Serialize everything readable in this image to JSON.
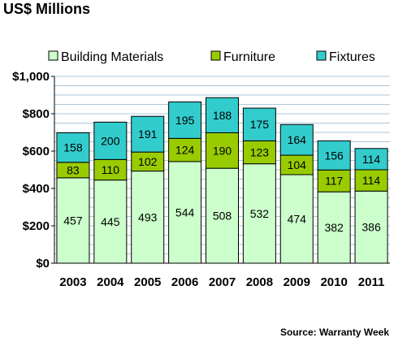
{
  "chart_data": {
    "type": "bar",
    "stacked": true,
    "title": "US$ Millions",
    "source": "Source: Warranty Week",
    "categories": [
      "2003",
      "2004",
      "2005",
      "2006",
      "2007",
      "2008",
      "2009",
      "2010",
      "2011"
    ],
    "series": [
      {
        "name": "Building Materials",
        "color": "#ccffcc",
        "values": [
          457,
          445,
          493,
          544,
          508,
          532,
          474,
          382,
          386
        ]
      },
      {
        "name": "Furniture",
        "color": "#99cc00",
        "values": [
          83,
          110,
          102,
          124,
          190,
          123,
          104,
          117,
          114
        ]
      },
      {
        "name": "Fixtures",
        "color": "#33cccc",
        "values": [
          158,
          200,
          191,
          195,
          188,
          175,
          164,
          156,
          114
        ]
      }
    ],
    "y_ticks": [
      "$0",
      "$200",
      "$400",
      "$600",
      "$800",
      "$1,000"
    ],
    "ylim": [
      0,
      1000
    ],
    "grid": true,
    "legend_position": "top"
  }
}
